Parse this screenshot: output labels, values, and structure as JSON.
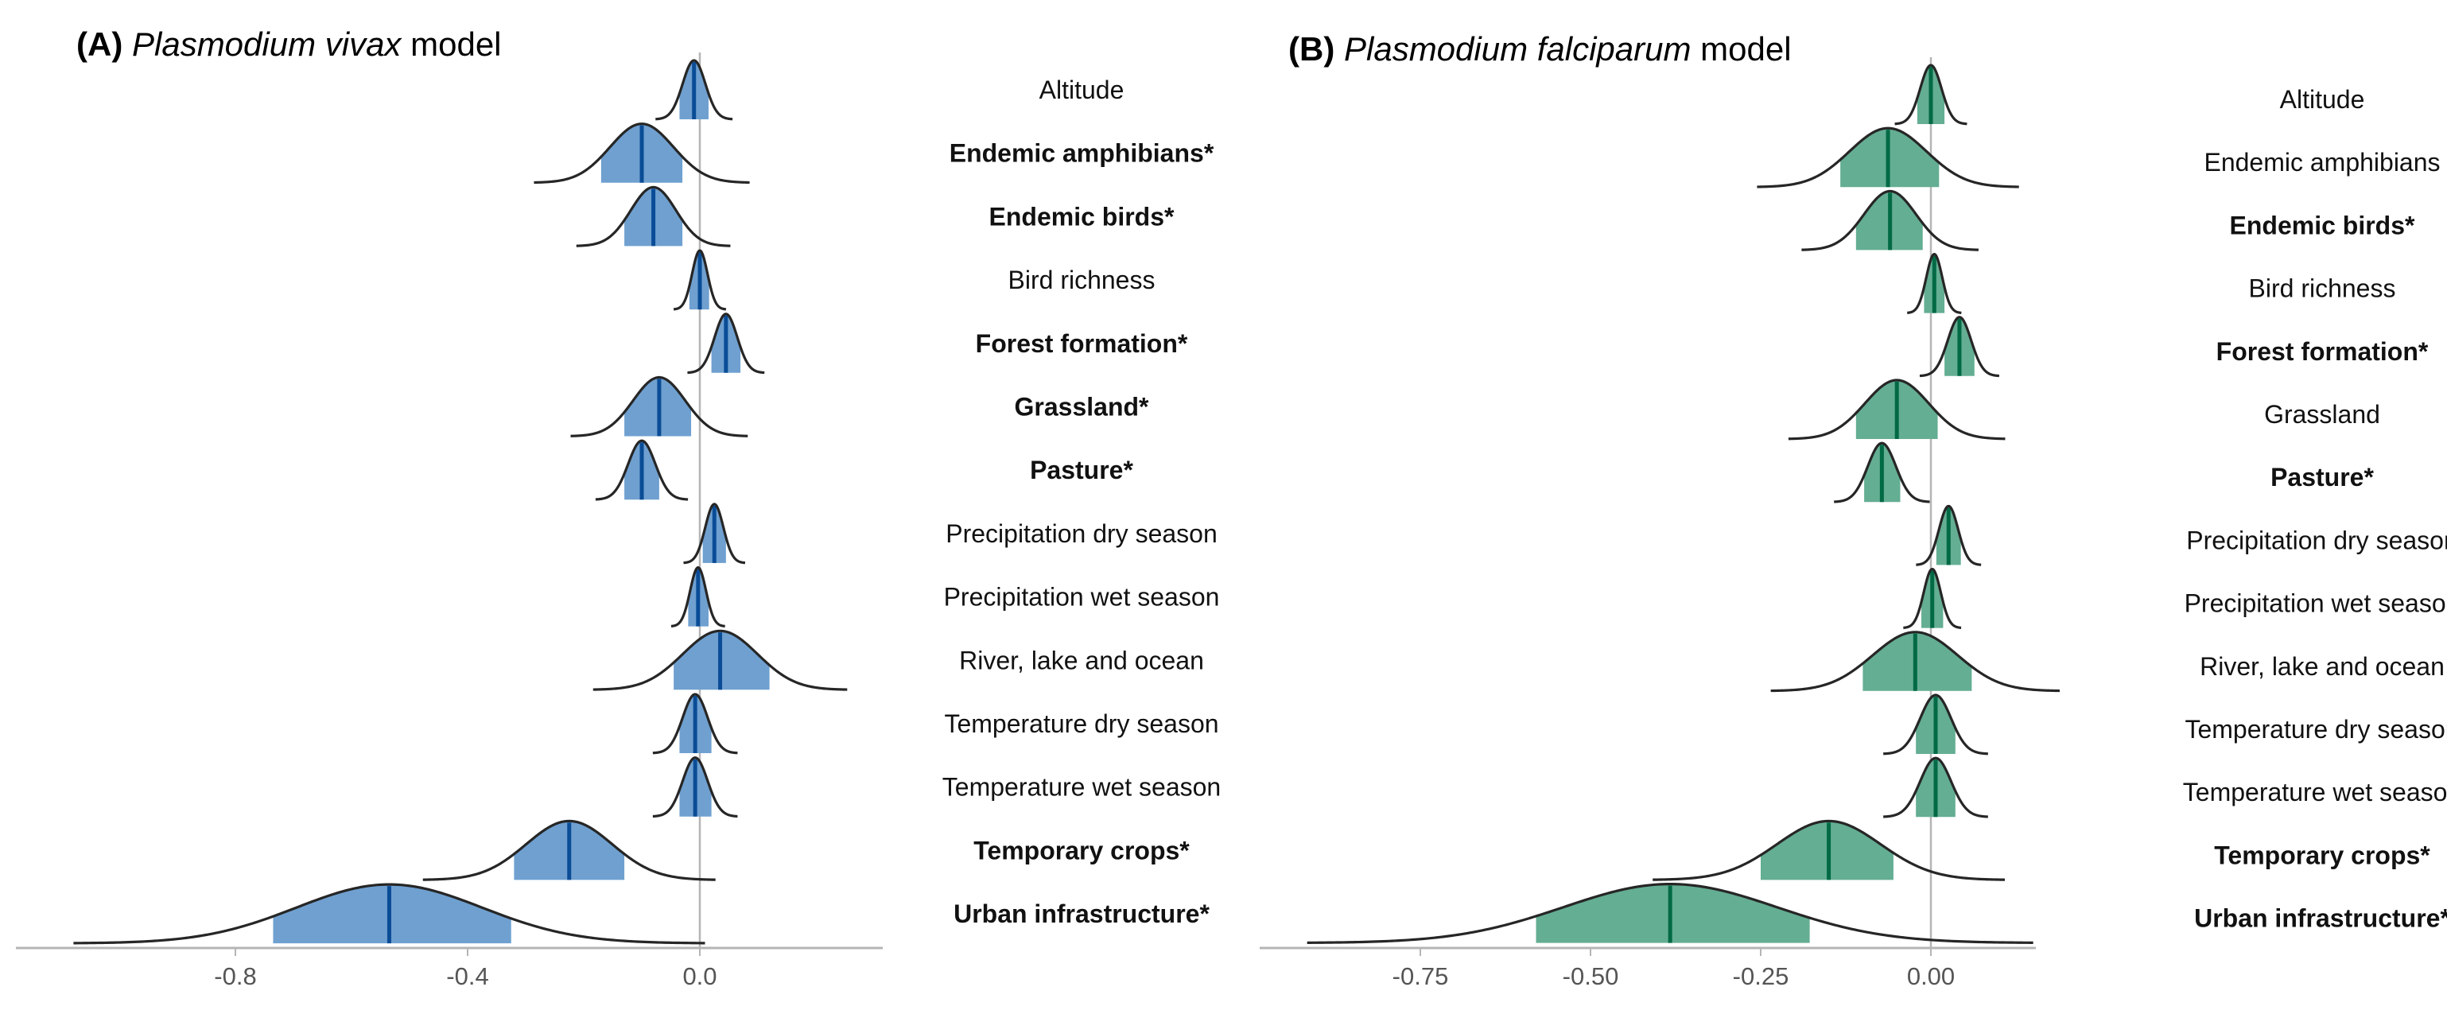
{
  "chart_data": [
    {
      "type": "ridgeline",
      "title_prefix": "(A)",
      "title_italic": "Plasmodium vivax",
      "title_suffix": "model",
      "xlabel": "",
      "xlim": [
        -1.08,
        0.32
      ],
      "xticks": [
        -0.8,
        -0.4,
        0.0
      ],
      "xtick_labels": [
        "-0.8",
        "-0.4",
        "0.0"
      ],
      "reference_line": 0,
      "fill_color": "#6fa0d0",
      "mean_color": "#0a4c96",
      "shaded_interval": "80% credible interval",
      "variables": [
        {
          "name": "Altitude",
          "bold": false,
          "mean": -0.01,
          "ci_low": -0.035,
          "ci_high": 0.015
        },
        {
          "name": "Endemic amphibians*",
          "bold": true,
          "mean": -0.1,
          "ci_low": -0.17,
          "ci_high": -0.03
        },
        {
          "name": "Endemic birds*",
          "bold": true,
          "mean": -0.08,
          "ci_low": -0.13,
          "ci_high": -0.03
        },
        {
          "name": "Bird richness",
          "bold": false,
          "mean": 0.0,
          "ci_low": -0.018,
          "ci_high": 0.016
        },
        {
          "name": "Forest formation*",
          "bold": true,
          "mean": 0.045,
          "ci_low": 0.02,
          "ci_high": 0.07
        },
        {
          "name": "Grassland*",
          "bold": true,
          "mean": -0.07,
          "ci_low": -0.13,
          "ci_high": -0.015
        },
        {
          "name": "Pasture*",
          "bold": true,
          "mean": -0.1,
          "ci_low": -0.13,
          "ci_high": -0.07
        },
        {
          "name": "Precipitation dry season",
          "bold": false,
          "mean": 0.025,
          "ci_low": 0.005,
          "ci_high": 0.045
        },
        {
          "name": "Precipitation wet season",
          "bold": false,
          "mean": -0.003,
          "ci_low": -0.02,
          "ci_high": 0.015
        },
        {
          "name": "River, lake and ocean",
          "bold": false,
          "mean": 0.035,
          "ci_low": -0.045,
          "ci_high": 0.12
        },
        {
          "name": "Temperature dry season",
          "bold": false,
          "mean": -0.008,
          "ci_low": -0.035,
          "ci_high": 0.02
        },
        {
          "name": "Temperature wet season",
          "bold": false,
          "mean": -0.008,
          "ci_low": -0.035,
          "ci_high": 0.02
        },
        {
          "name": "Temporary crops*",
          "bold": true,
          "mean": -0.225,
          "ci_low": -0.32,
          "ci_high": -0.13
        },
        {
          "name": "Urban infrastructure*",
          "bold": true,
          "mean": -0.535,
          "ci_low": -0.735,
          "ci_high": -0.325
        }
      ]
    },
    {
      "type": "ridgeline",
      "title_prefix": "(B)",
      "title_italic": "Plasmodium falciparum",
      "title_suffix": "model",
      "xlabel": "",
      "xlim": [
        -0.98,
        0.16
      ],
      "xticks": [
        -0.75,
        -0.5,
        -0.25,
        0.0
      ],
      "xtick_labels": [
        "-0.75",
        "-0.50",
        "-0.25",
        "0.00"
      ],
      "reference_line": 0,
      "fill_color": "#64ae93",
      "mean_color": "#006a45",
      "shaded_interval": "80% credible interval",
      "variables": [
        {
          "name": "Altitude",
          "bold": false,
          "mean": 0.0,
          "ci_low": -0.02,
          "ci_high": 0.02
        },
        {
          "name": "Endemic amphibians",
          "bold": false,
          "mean": -0.063,
          "ci_low": -0.133,
          "ci_high": 0.012
        },
        {
          "name": "Endemic birds*",
          "bold": true,
          "mean": -0.06,
          "ci_low": -0.11,
          "ci_high": -0.012
        },
        {
          "name": "Bird richness",
          "bold": false,
          "mean": 0.005,
          "ci_low": -0.01,
          "ci_high": 0.02
        },
        {
          "name": "Forest formation*",
          "bold": true,
          "mean": 0.042,
          "ci_low": 0.02,
          "ci_high": 0.064
        },
        {
          "name": "Grassland",
          "bold": false,
          "mean": -0.05,
          "ci_low": -0.11,
          "ci_high": 0.01
        },
        {
          "name": "Pasture*",
          "bold": true,
          "mean": -0.072,
          "ci_low": -0.098,
          "ci_high": -0.045
        },
        {
          "name": "Precipitation dry season",
          "bold": false,
          "mean": 0.026,
          "ci_low": 0.008,
          "ci_high": 0.044
        },
        {
          "name": "Precipitation wet season",
          "bold": false,
          "mean": 0.002,
          "ci_low": -0.014,
          "ci_high": 0.018
        },
        {
          "name": "River, lake and ocean",
          "bold": false,
          "mean": -0.023,
          "ci_low": -0.1,
          "ci_high": 0.06
        },
        {
          "name": "Temperature dry season",
          "bold": false,
          "mean": 0.007,
          "ci_low": -0.022,
          "ci_high": 0.036
        },
        {
          "name": "Temperature wet season",
          "bold": false,
          "mean": 0.007,
          "ci_low": -0.022,
          "ci_high": 0.036
        },
        {
          "name": "Temporary crops*",
          "bold": true,
          "mean": -0.15,
          "ci_low": -0.25,
          "ci_high": -0.055
        },
        {
          "name": "Urban infrastructure*",
          "bold": true,
          "mean": -0.383,
          "ci_low": -0.58,
          "ci_high": -0.178
        }
      ]
    }
  ]
}
